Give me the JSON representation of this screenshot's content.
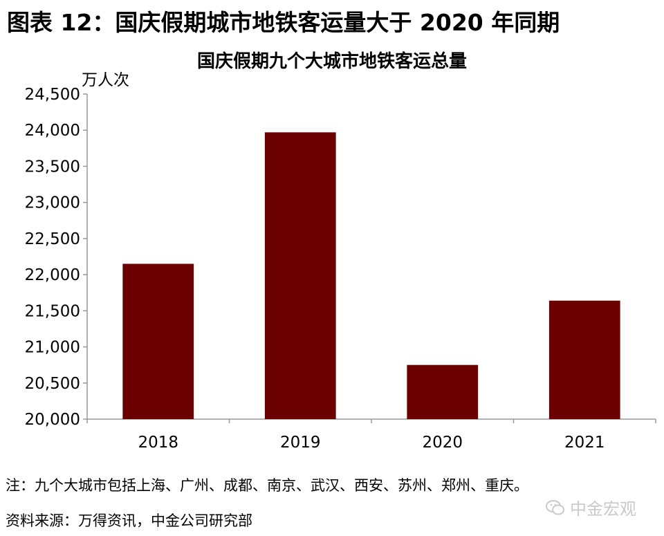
{
  "figure_title": "图表 12：国庆假期城市地铁客运量大于 2020 年同期",
  "note": "注：九个大城市包括上海、广州、成都、南京、武汉、西安、苏州、郑州、重庆。",
  "source": "资料来源：万得资讯，中金公司研究部",
  "watermark": "中金宏观",
  "chart_data": {
    "type": "bar",
    "title": "国庆假期九个大城市地铁客运总量",
    "ylabel": "万人次",
    "xlabel": "",
    "categories": [
      "2018",
      "2019",
      "2020",
      "2021"
    ],
    "values": [
      22150,
      23970,
      20750,
      21640
    ],
    "ylim": [
      20000,
      24500
    ],
    "yticks": [
      20000,
      20500,
      21000,
      21500,
      22000,
      22500,
      23000,
      23500,
      24000,
      24500
    ],
    "ytick_labels": [
      "20,000",
      "20,500",
      "21,000",
      "21,500",
      "22,000",
      "22,500",
      "23,000",
      "23,500",
      "24,000",
      "24,500"
    ],
    "bar_color": "#6b0000",
    "grid": false,
    "legend": "none"
  }
}
